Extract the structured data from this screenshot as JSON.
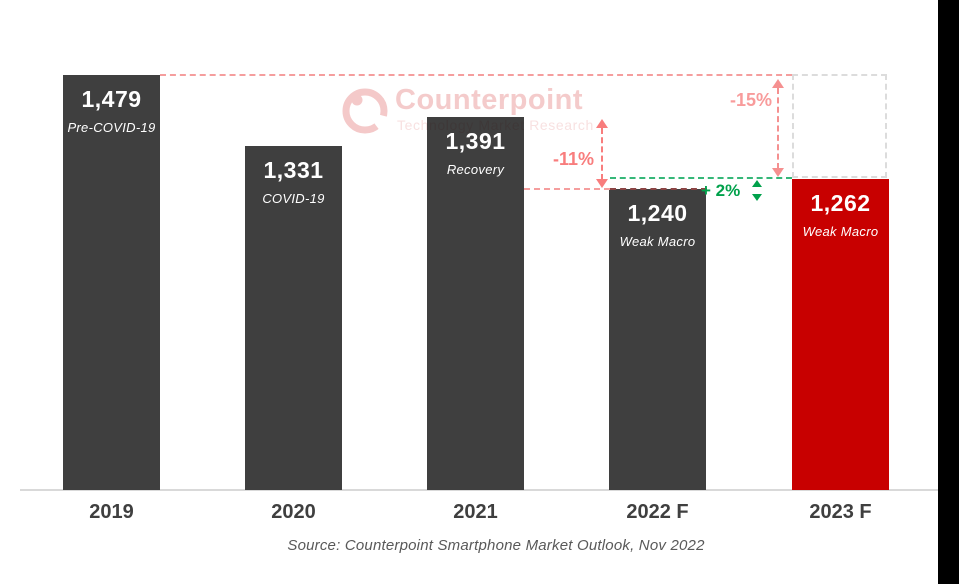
{
  "watermark": {
    "title": "Counterpoint",
    "subtitle": "Technology Market Research"
  },
  "chart_data": {
    "type": "bar",
    "categories": [
      "2019",
      "2020",
      "2021",
      "2022 F",
      "2023 F"
    ],
    "values": [
      1479,
      1331,
      1391,
      1240,
      1262
    ],
    "bar_sublabels": [
      "Pre-COVID-19",
      "COVID-19",
      "Recovery",
      "Weak Macro",
      "Weak Macro"
    ],
    "bar_colors": [
      "#3F3F3F",
      "#3F3F3F",
      "#3F3F3F",
      "#3F3F3F",
      "#C80000"
    ],
    "annotations": [
      {
        "id": "drop-2019-to-2023",
        "label": "-15%",
        "color": "#F89B9B",
        "style": "dashed-double-arrow"
      },
      {
        "id": "drop-2021-to-2022",
        "label": "-11%",
        "color": "#F87D7D",
        "style": "dashed-double-arrow"
      },
      {
        "id": "gain-2022-to-2023",
        "label": "+ 2%",
        "color": "#00A14B",
        "style": "small-double-arrow"
      }
    ],
    "reference_lines": [
      {
        "id": "level-2019-peak",
        "value": 1479,
        "color": "#F59E9E",
        "style": "dashed"
      },
      {
        "id": "level-2023-forecast",
        "value": 1262,
        "color": "#35B778",
        "style": "dashed"
      },
      {
        "id": "level-2022-forecast",
        "value": 1240,
        "color": "#F59E9E",
        "style": "dashed"
      }
    ],
    "gap_box": {
      "from_value": 1262,
      "to_value": 1479,
      "at_category": "2023 F",
      "color": "#DCDCDC"
    },
    "title": "",
    "xlabel": "",
    "ylabel": "",
    "legend": false,
    "gridlines": false,
    "y_axis": "hidden",
    "truncated_axis": true,
    "source": "Source: Counterpoint Smartphone Market Outlook, Nov 2022"
  },
  "colors": {
    "bar_dark": "#3F3F3F",
    "bar_red": "#C80000",
    "dashed_pink": "#F59E9E",
    "dashed_pink_on_bar": "#8B4545",
    "dashed_green": "#35B778",
    "gap_box_gray": "#DCDCDC",
    "axis_label": "#3F3F3F",
    "source_text": "#595959",
    "baseline": "#D9D9D9",
    "watermark_pink": "#F4CBCB"
  }
}
